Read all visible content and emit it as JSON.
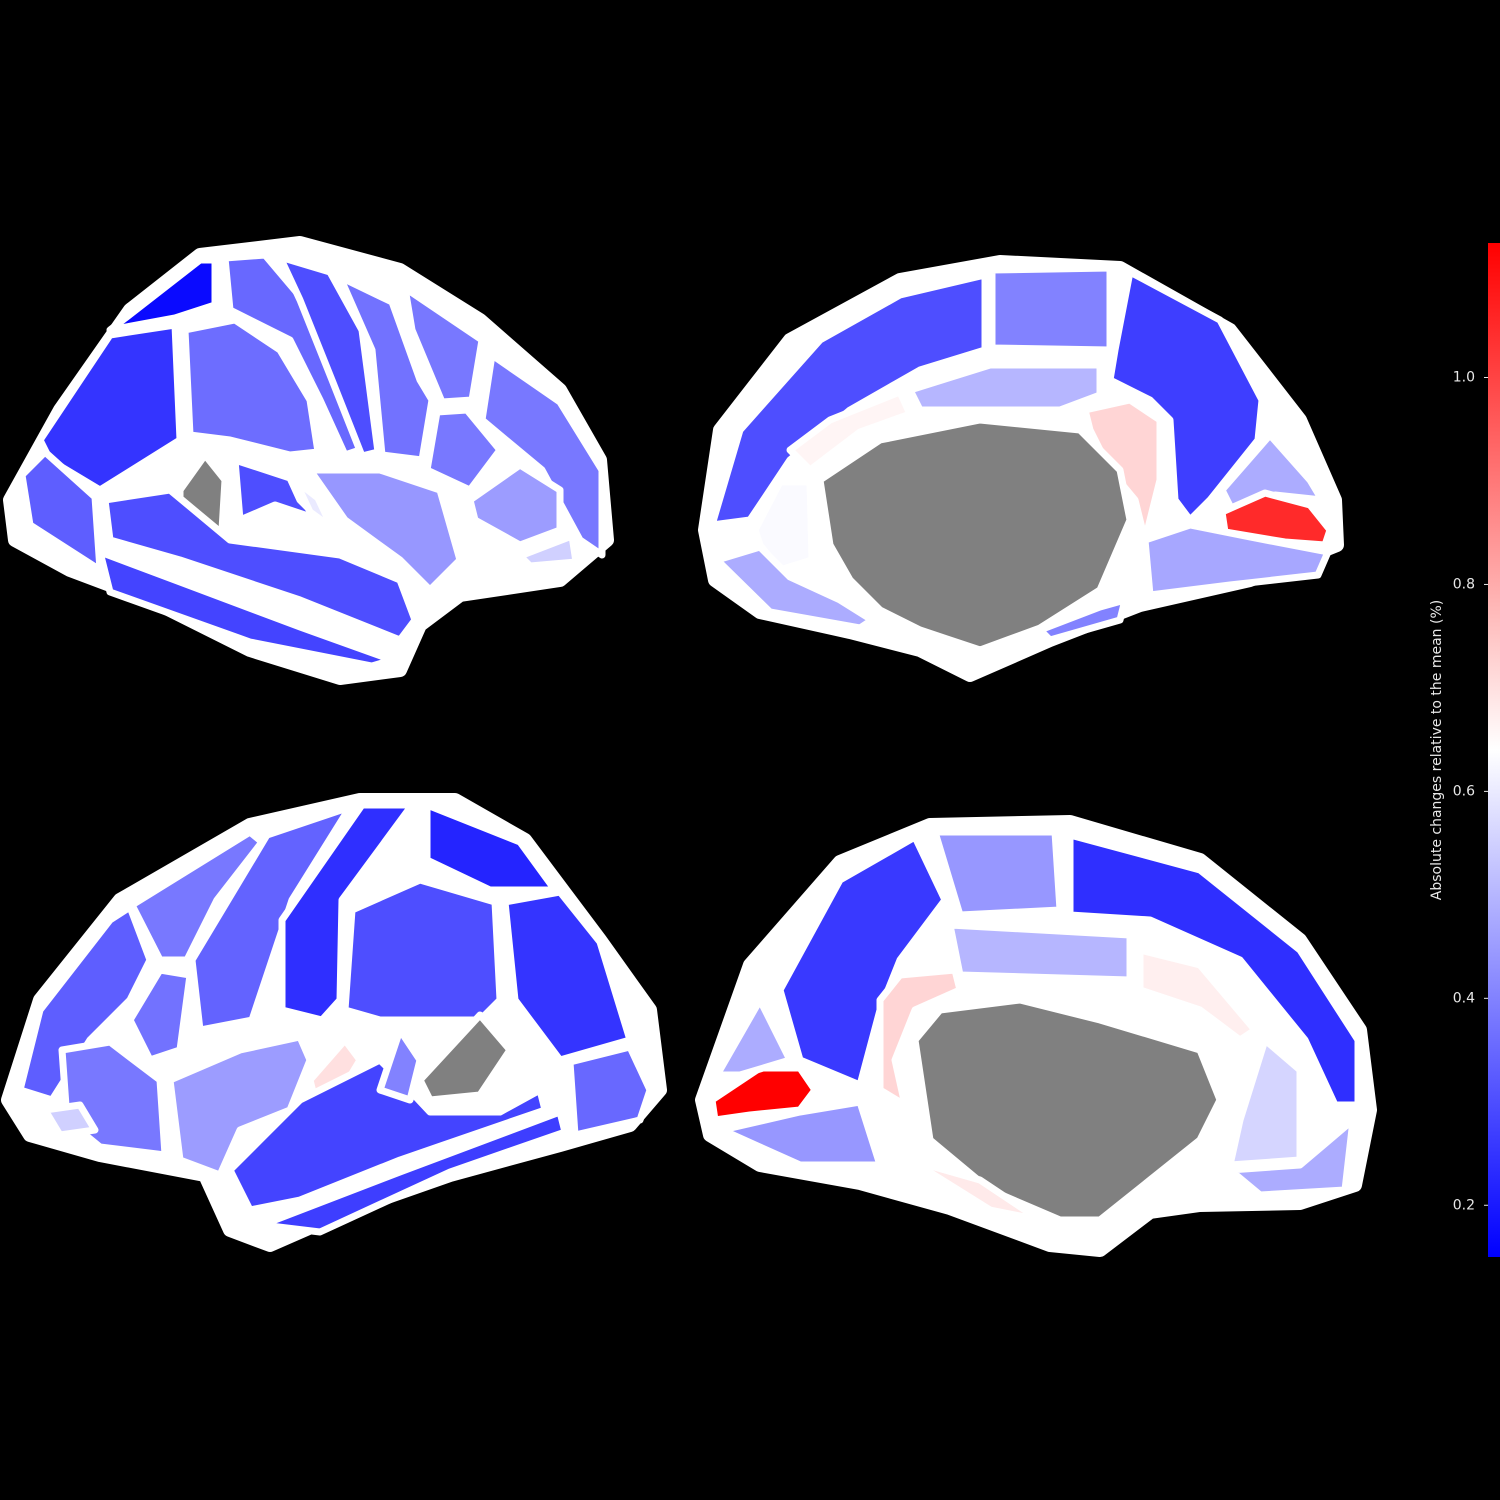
{
  "chart_data": {
    "type": "brain_map",
    "colorbar_label": "Absolute changes relative to the mean (%)",
    "cmap": [
      "#0000ff",
      "#ffffff",
      "#ff0000"
    ],
    "nan_color": "#808080",
    "vlim": [
      0.15,
      1.13
    ],
    "vticks": [
      0.2,
      0.4,
      0.6,
      0.8,
      {
        "value": 1,
        "label": "1.0"
      }
    ],
    "views": [
      {
        "values": [
          0.17,
          0.25,
          0.33,
          0.35,
          0.36,
          0.3,
          0.37,
          0.38,
          0.38,
          0.45,
          0.55,
          0.38,
          0.44,
          null,
          0.3,
          0.6,
          0.3,
          0.28
        ]
      },
      {
        "values": [
          0.3,
          0.4,
          0.27,
          0.48,
          1.05,
          0.47,
          0.5,
          0.72,
          0.66,
          0.63,
          0.48,
          0.4,
          null
        ]
      },
      {
        "values": [
          0.33,
          0.38,
          0.37,
          0.34,
          0.24,
          0.3,
          0.22,
          0.25,
          0.35,
          null,
          0.7,
          0.45,
          0.28,
          0.27,
          0.38,
          0.55,
          0.4
        ]
      },
      {
        "values": [
          1.13,
          0.48,
          0.26,
          0.44,
          0.24,
          0.5,
          0.72,
          0.67,
          0.56,
          0.48,
          0.44,
          null,
          0.68
        ]
      }
    ]
  }
}
